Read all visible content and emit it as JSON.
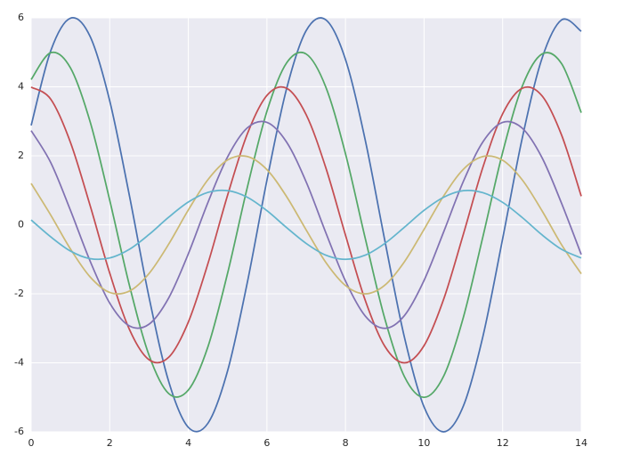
{
  "chart_data": {
    "type": "line",
    "x": [
      0,
      0.5,
      1,
      1.5,
      2,
      2.5,
      3,
      3.5,
      4,
      4.5,
      5,
      5.5,
      6,
      6.5,
      7,
      7.5,
      8,
      8.5,
      9,
      9.5,
      10,
      10.5,
      11,
      11.5,
      12,
      12.5,
      13,
      13.5,
      14
    ],
    "series": [
      {
        "color": "#4c72b0",
        "values": [
          2.88,
          5.05,
          5.99,
          5.46,
          3.59,
          0.85,
          -2.1,
          -4.54,
          -5.87,
          -5.75,
          -4.23,
          -1.68,
          1.29,
          3.94,
          5.63,
          5.94,
          4.79,
          2.47,
          -0.45,
          -3.26,
          -5.28,
          -6.0,
          -5.25,
          -3.22,
          -0.4,
          2.52,
          4.82,
          5.94,
          5.61
        ]
      },
      {
        "color": "#55a868",
        "values": [
          4.21,
          4.99,
          4.55,
          2.99,
          0.71,
          -1.75,
          -3.78,
          -4.89,
          -4.79,
          -3.53,
          -1.4,
          1.08,
          3.29,
          4.69,
          4.95,
          3.99,
          2.06,
          -0.38,
          -2.72,
          -4.4,
          -5.0,
          -4.38,
          -2.68,
          -0.33,
          2.1,
          4.02,
          4.95,
          4.67,
          3.25
        ]
      },
      {
        "color": "#c44e52",
        "values": [
          3.99,
          3.64,
          2.39,
          0.56,
          -1.4,
          -3.03,
          -3.91,
          -3.84,
          -2.82,
          -1.12,
          0.86,
          2.63,
          3.75,
          3.96,
          3.19,
          1.65,
          -0.3,
          -2.18,
          -3.52,
          -4.0,
          -3.5,
          -2.15,
          -0.27,
          1.68,
          3.22,
          3.96,
          3.74,
          2.6,
          0.83
        ]
      },
      {
        "color": "#8172b2",
        "values": [
          2.73,
          1.8,
          0.42,
          -1.05,
          -2.27,
          -2.93,
          -2.88,
          -2.12,
          -0.84,
          0.65,
          1.97,
          2.81,
          2.97,
          2.4,
          1.24,
          -0.23,
          -1.63,
          -2.64,
          -3.0,
          -2.63,
          -1.61,
          -0.2,
          1.26,
          2.41,
          2.97,
          2.8,
          1.95,
          0.62,
          -0.86
        ]
      },
      {
        "color": "#ccb974",
        "values": [
          1.2,
          0.28,
          -0.7,
          -1.51,
          -1.96,
          -1.92,
          -1.41,
          -0.56,
          0.43,
          1.31,
          1.88,
          1.98,
          1.6,
          0.82,
          -0.15,
          -1.09,
          -1.76,
          -2.0,
          -1.75,
          -1.07,
          -0.13,
          0.84,
          1.61,
          1.98,
          1.87,
          1.3,
          0.41,
          -0.58,
          -1.42
        ]
      },
      {
        "color": "#64b5cd",
        "values": [
          0.14,
          -0.35,
          -0.76,
          -0.98,
          -0.96,
          -0.71,
          -0.28,
          0.22,
          0.66,
          0.94,
          0.99,
          0.8,
          0.41,
          -0.08,
          -0.54,
          -0.88,
          -1.0,
          -0.88,
          -0.54,
          -0.07,
          0.42,
          0.8,
          0.99,
          0.93,
          0.65,
          0.21,
          -0.29,
          -0.71,
          -0.96
        ]
      }
    ],
    "xlim": [
      0,
      14
    ],
    "xticks": [
      0,
      2,
      4,
      6,
      8,
      10,
      12,
      14
    ],
    "ylim": [
      -6,
      6
    ],
    "yticks": [
      -6,
      -4,
      -2,
      0,
      2,
      4,
      6
    ],
    "grid": true,
    "background": "#eaeaf2"
  }
}
